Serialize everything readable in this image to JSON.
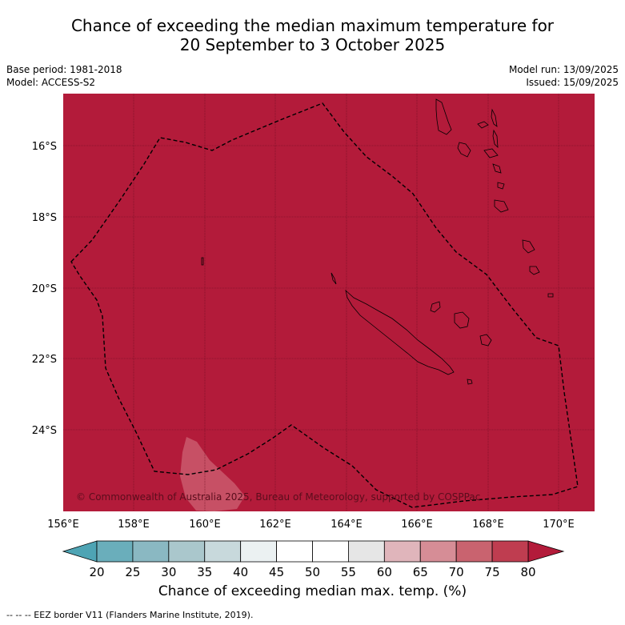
{
  "title": {
    "line1": "Chance of exceeding the median maximum temperature for",
    "line2": "20 September to 3 October 2025"
  },
  "meta": {
    "base_period": "Base period: 1981-2018",
    "model": "Model: ACCESS-S2",
    "model_run": "Model run: 13/09/2025",
    "issued": "Issued: 15/09/2025"
  },
  "map": {
    "background_color": "#b31b3a",
    "lat_labels": [
      "16°S",
      "18°S",
      "20°S",
      "22°S",
      "24°S"
    ],
    "lon_labels": [
      "156°E",
      "158°E",
      "160°E",
      "162°E",
      "164°E",
      "166°E",
      "168°E",
      "170°E"
    ],
    "copyright": "© Commonwealth of Australia 2025, Bureau of Meteorology, supported by COSPPac"
  },
  "colorbar": {
    "ticks": [
      "20",
      "25",
      "30",
      "35",
      "40",
      "45",
      "50",
      "55",
      "60",
      "65",
      "70",
      "75",
      "80"
    ],
    "colors": [
      "#6aaebb",
      "#8ab8c2",
      "#aac7cc",
      "#c8d9dc",
      "#ebf1f2",
      "#ffffff",
      "#ffffff",
      "#e6e6e6",
      "#e0b5bb",
      "#d68d96",
      "#c9636f",
      "#bf3d50"
    ],
    "under_color": "#4ea4b4",
    "over_color": "#b31b3a",
    "title": "Chance of exceeding median max. temp. (%)"
  },
  "footer": "--  --  -- EEZ border V11 (Flanders Marine Institute, 2019)."
}
